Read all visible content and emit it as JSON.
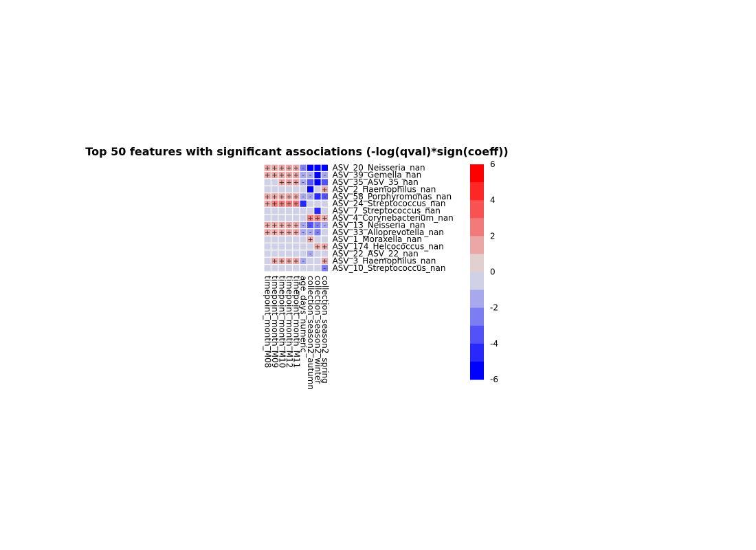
{
  "chart_data": {
    "type": "heatmap",
    "title": "Top 50 features with significant associations (-log(qval)*sign(coeff))",
    "columns": [
      "timepoint_month_M08",
      "timepoint_month_M09",
      "timepoint_month_M10",
      "timepoint_month_M12",
      "timepoint_month_M11",
      "age_days_numeric",
      "collection_season2_autumn",
      "collection_season2_winter",
      "collection_season2_spring"
    ],
    "rows": [
      "ASV_20_Neisseria_nan",
      "ASV_39_Gemella_nan",
      "ASV_35_ASV_35_nan",
      "ASV_2_Haemophilus_nan",
      "ASV_58_Porphyromonas_nan",
      "ASV_24_Streptococcus_nan",
      "ASV_7_Streptococcus_nan",
      "ASV_4_Corynebacterium_nan",
      "ASV_13_Neisseria_nan",
      "ASV_33_Alloprevotella_nan",
      "ASV_1_Moraxella_nan",
      "ASV_174_Helcococcus_nan",
      "ASV_22_ASV_22_nan",
      "ASV_3_Haemophilus_nan",
      "ASV_10_Streptococcus_nan"
    ],
    "values": [
      [
        2,
        2,
        2,
        2,
        2,
        -2,
        -5,
        -5,
        -5
      ],
      [
        2,
        2,
        2,
        2,
        2,
        -1,
        -1,
        -5,
        -1
      ],
      [
        0,
        0,
        2,
        2,
        2,
        -1,
        -3,
        -5,
        -3
      ],
      [
        0,
        0,
        0,
        0,
        0,
        0,
        -5,
        0,
        2
      ],
      [
        2,
        2,
        2,
        2,
        2,
        -1,
        -1,
        -4,
        -3
      ],
      [
        2,
        3,
        3,
        3,
        3,
        -4,
        0,
        0,
        0
      ],
      [
        0,
        0,
        0,
        0,
        0,
        0,
        0,
        -4,
        0
      ],
      [
        0,
        0,
        0,
        0,
        0,
        0,
        3,
        3,
        2
      ],
      [
        2,
        2,
        2,
        2,
        2,
        -1,
        -3,
        -2,
        -1
      ],
      [
        2,
        2,
        2,
        2,
        2,
        -1,
        -1,
        -2,
        0
      ],
      [
        0,
        0,
        0,
        0,
        0,
        0,
        2,
        0,
        0
      ],
      [
        0,
        0,
        0,
        0,
        0,
        0,
        0,
        2,
        2
      ],
      [
        0,
        0,
        0,
        0,
        0,
        0,
        -1,
        0,
        0
      ],
      [
        0,
        2,
        2,
        2,
        2,
        -1,
        0,
        0,
        2
      ],
      [
        0,
        0,
        0,
        0,
        0,
        0,
        0,
        0,
        -2
      ]
    ],
    "symbols": [
      [
        "+",
        "+",
        "+",
        "+",
        "+",
        "-",
        "",
        "",
        ""
      ],
      [
        "+",
        "+",
        "+",
        "+",
        "+",
        "-",
        "-",
        "",
        "-"
      ],
      [
        "",
        "",
        "+",
        "+",
        "+",
        "-",
        "",
        "",
        ""
      ],
      [
        "",
        "",
        "",
        "",
        "",
        "",
        "",
        "",
        "+"
      ],
      [
        "+",
        "+",
        "+",
        "+",
        "+",
        "-",
        "-",
        "",
        "-"
      ],
      [
        "+",
        "+",
        "+",
        "+",
        "+",
        "",
        "",
        "",
        ""
      ],
      [
        "",
        "",
        "",
        "",
        "",
        "",
        "",
        "",
        ""
      ],
      [
        "",
        "",
        "",
        "",
        "",
        "",
        "+",
        "+",
        "+"
      ],
      [
        "+",
        "+",
        "+",
        "+",
        "+",
        "-",
        "-",
        "-",
        "-"
      ],
      [
        "+",
        "+",
        "+",
        "+",
        "+",
        "-",
        "-",
        "-",
        ""
      ],
      [
        "",
        "",
        "",
        "",
        "",
        "",
        "+",
        "",
        ""
      ],
      [
        "",
        "",
        "",
        "",
        "",
        "",
        "",
        "+",
        "+"
      ],
      [
        "",
        "",
        "",
        "",
        "",
        "",
        "-",
        "",
        ""
      ],
      [
        "",
        "+",
        "+",
        "+",
        "+",
        "-",
        "",
        "",
        "+"
      ],
      [
        "",
        "",
        "",
        "",
        "",
        "",
        "",
        "",
        "-"
      ]
    ],
    "colorbar": {
      "min": -6,
      "max": 6,
      "ticks": [
        "6",
        "4",
        "2",
        "0",
        "-2",
        "-4",
        "-6"
      ],
      "colors": [
        "#ff0000",
        "#ff2626",
        "#f95252",
        "#f27a7a",
        "#eba6a6",
        "#e2d0d0",
        "#d0d0e6",
        "#a8a8ef",
        "#7c7cf3",
        "#5252f8",
        "#2828fc",
        "#0000ff"
      ]
    }
  }
}
